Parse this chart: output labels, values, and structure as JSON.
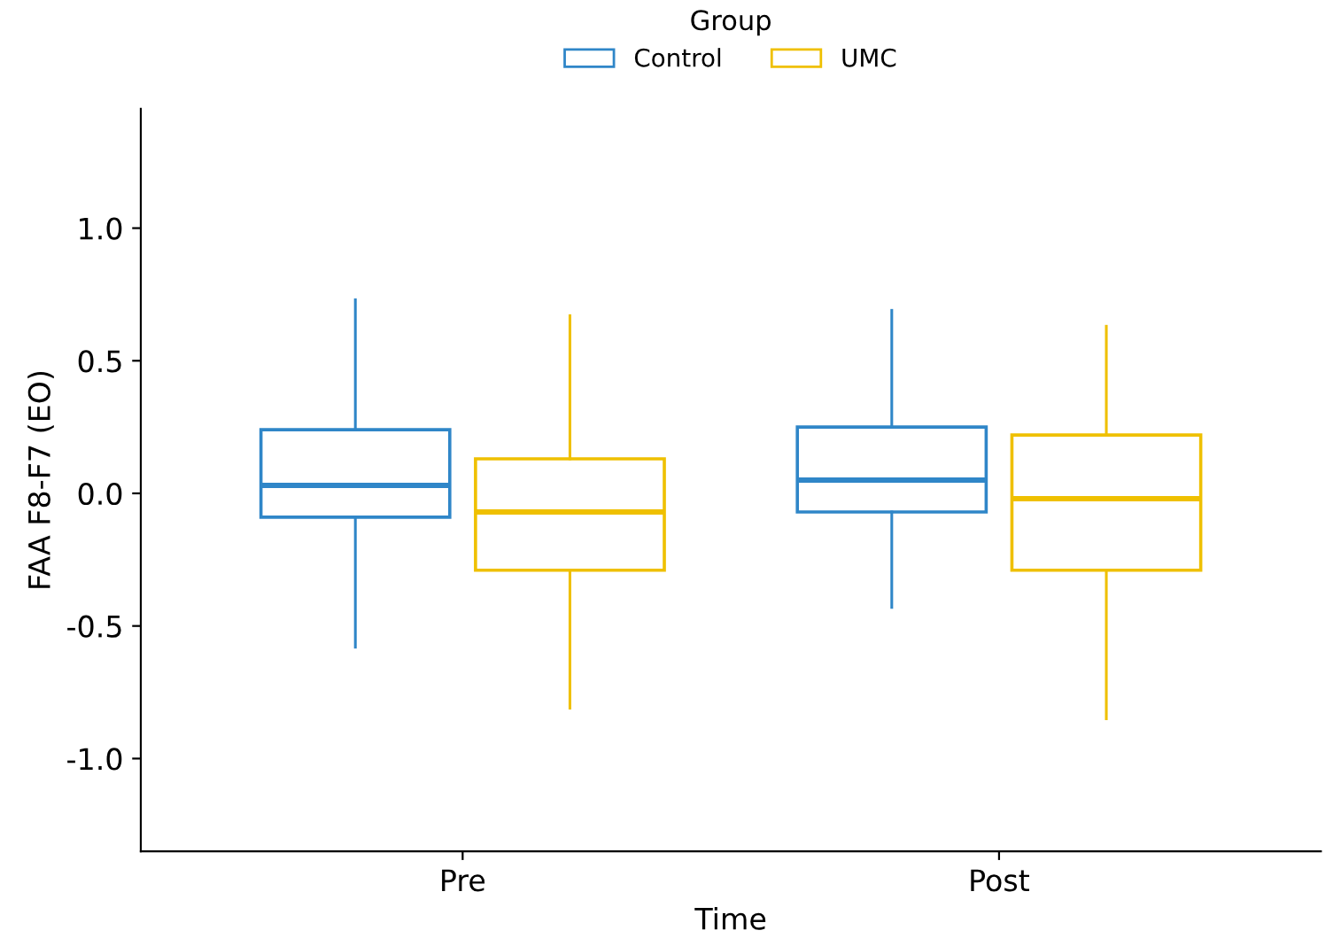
{
  "chart_data": {
    "type": "box",
    "xlabel": "Time",
    "ylabel": "FAA F8-F7 (EO)",
    "legend_title": "Group",
    "categories": [
      "Pre",
      "Post"
    ],
    "series": [
      {
        "name": "Control",
        "color": "#2f86c8",
        "boxes": [
          {
            "low": -0.58,
            "q1": -0.09,
            "median": 0.03,
            "q3": 0.24,
            "high": 0.73
          },
          {
            "low": -0.43,
            "q1": -0.07,
            "median": 0.05,
            "q3": 0.25,
            "high": 0.69
          }
        ]
      },
      {
        "name": "UMC",
        "color": "#efc000",
        "boxes": [
          {
            "low": -0.81,
            "q1": -0.29,
            "median": -0.07,
            "q3": 0.13,
            "high": 0.67
          },
          {
            "low": -0.85,
            "q1": -0.29,
            "median": -0.02,
            "q3": 0.22,
            "high": 0.63
          }
        ]
      }
    ],
    "ylim": [
      -1.35,
      1.45
    ],
    "yticks": [
      {
        "value": -1,
        "label": "-1.0"
      },
      -0.5,
      {
        "value": 0,
        "label": "0.0"
      },
      0.5,
      {
        "value": 1,
        "label": "1.0"
      }
    ],
    "grid": false,
    "legend": "top"
  }
}
